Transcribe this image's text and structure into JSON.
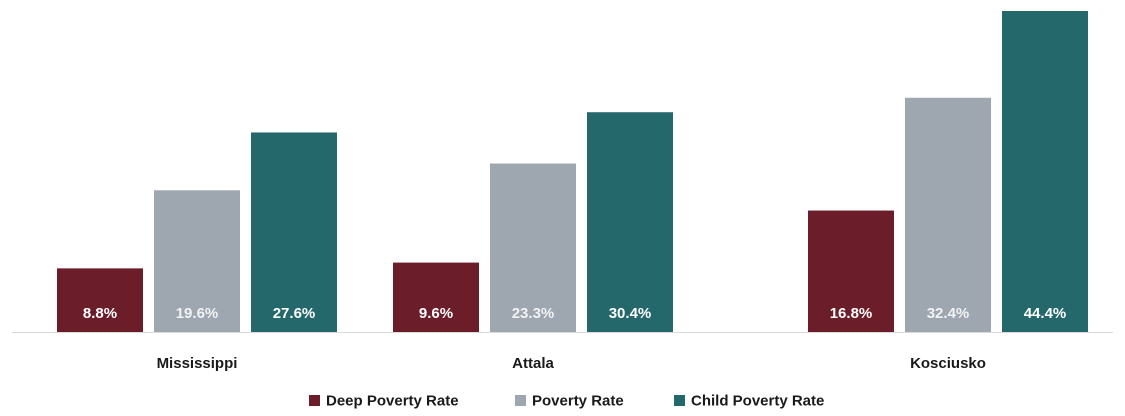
{
  "chart_data": {
    "type": "bar",
    "title": "",
    "xlabel": "",
    "ylabel": "",
    "categories": [
      "Mississippi",
      "Attala",
      "Kosciusko"
    ],
    "series": [
      {
        "name": "Deep Poverty Rate",
        "values": [
          8.8,
          9.6,
          16.8
        ],
        "labels": [
          "8.8%",
          "9.6%",
          "16.8%"
        ],
        "color": "#6b1d2a",
        "label_color": "#ffffff"
      },
      {
        "name": "Poverty Rate",
        "values": [
          19.6,
          23.3,
          32.4
        ],
        "labels": [
          "19.6%",
          "23.3%",
          "32.4%"
        ],
        "color": "#9ea6b0",
        "label_color": "#f1f3f5"
      },
      {
        "name": "Child Poverty Rate",
        "values": [
          27.6,
          30.4,
          44.4
        ],
        "labels": [
          "27.6%",
          "30.4%",
          "44.4%"
        ],
        "color": "#24686c",
        "label_color": "#ffffff"
      }
    ],
    "ylim": [
      0,
      44.4
    ],
    "y_axis_visible": false,
    "grid": false,
    "legend_position": "bottom-center"
  }
}
